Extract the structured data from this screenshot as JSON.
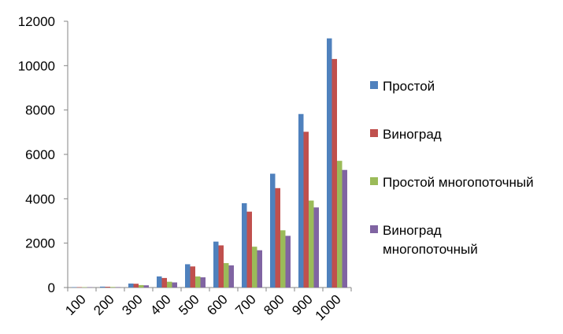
{
  "chart_data": {
    "type": "bar",
    "categories": [
      "100",
      "200",
      "300",
      "400",
      "500",
      "600",
      "700",
      "800",
      "900",
      "1000"
    ],
    "series": [
      {
        "name": "Простой",
        "color": "#4F81BD",
        "values": [
          15,
          40,
          180,
          500,
          1050,
          2070,
          3800,
          5130,
          7820,
          11230
        ]
      },
      {
        "name": "Виноград",
        "color": "#C0504D",
        "values": [
          12,
          35,
          170,
          430,
          950,
          1900,
          3420,
          4480,
          7020,
          10300
        ]
      },
      {
        "name": "Простой многопоточный",
        "color": "#9BBB59",
        "values": [
          10,
          25,
          110,
          260,
          500,
          1100,
          1840,
          2580,
          3920,
          5710
        ]
      },
      {
        "name": "Виноград многопоточный",
        "color": "#8064A2",
        "values": [
          8,
          20,
          100,
          230,
          460,
          1000,
          1680,
          2330,
          3610,
          5300
        ]
      }
    ],
    "yticks": [
      "0",
      "2000",
      "4000",
      "6000",
      "8000",
      "10000",
      "12000"
    ],
    "ylim": [
      0,
      12000
    ],
    "grid": false,
    "legend": "right"
  }
}
